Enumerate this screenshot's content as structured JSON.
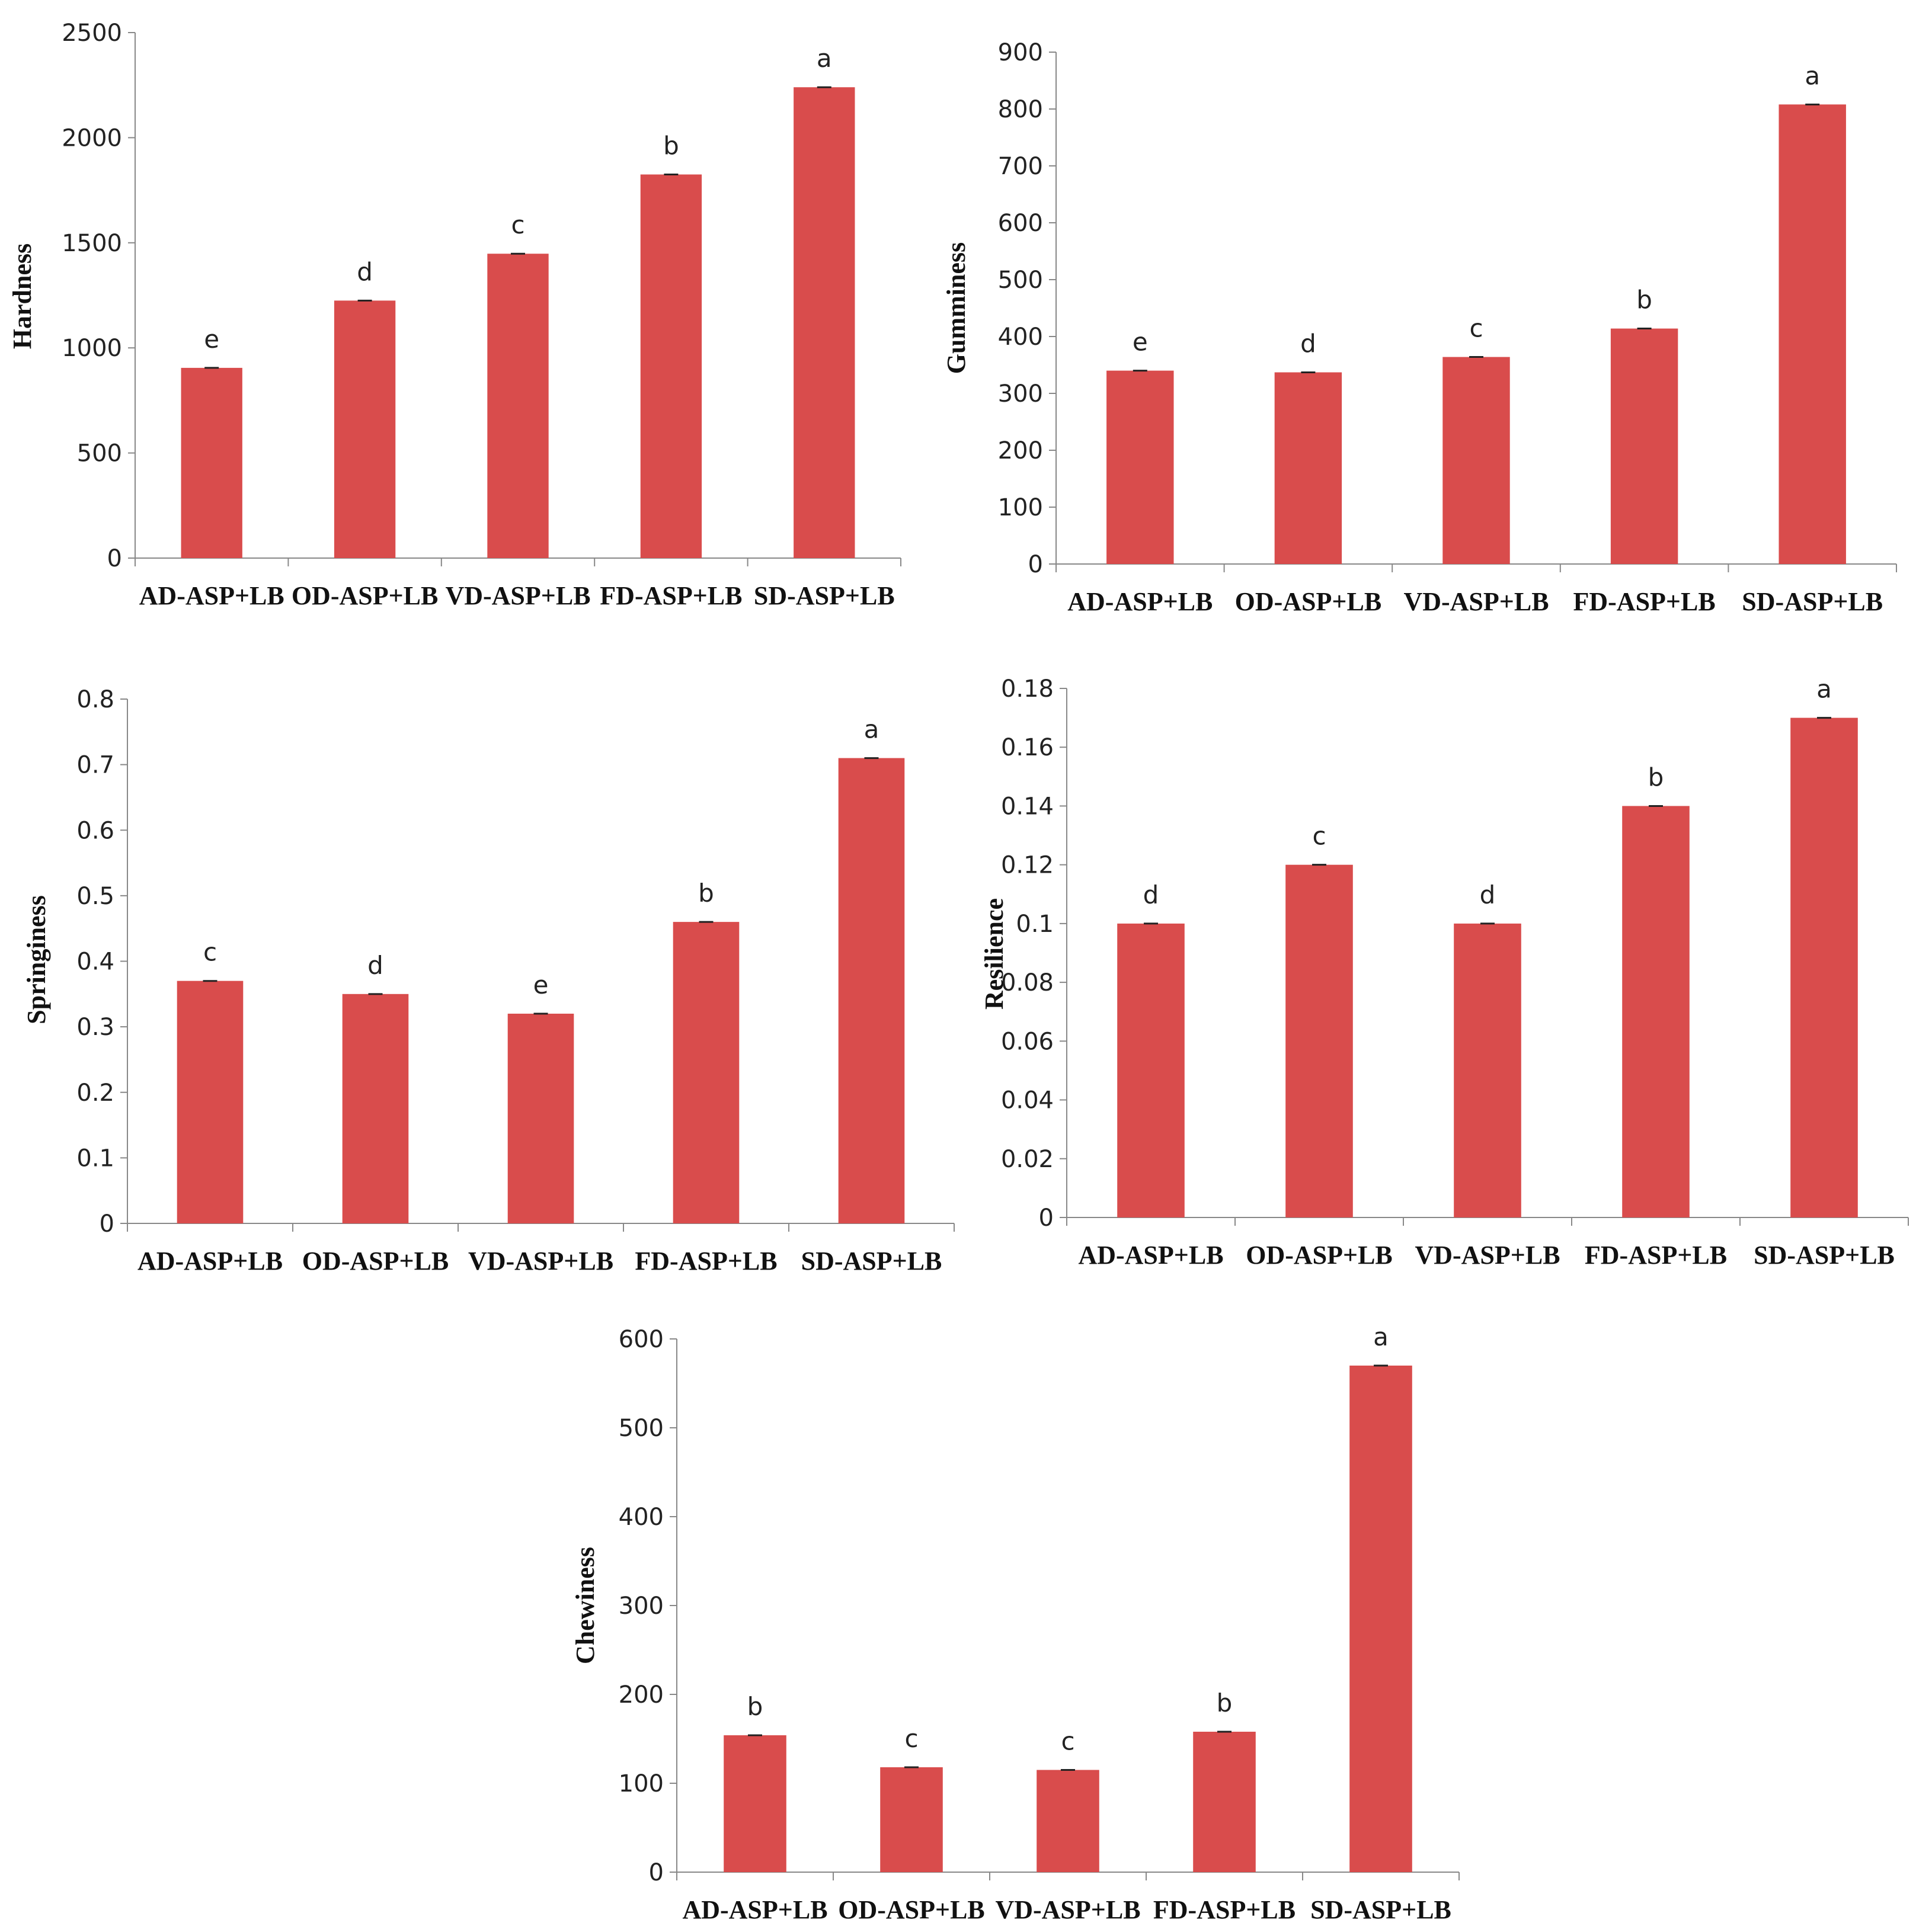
{
  "chart_data": [
    {
      "type": "bar",
      "ylabel": "Hardness",
      "categories": [
        "AD-ASP+LB",
        "OD-ASP+LB",
        "VD-ASP+LB",
        "FD-ASP+LB",
        "SD-ASP+LB"
      ],
      "values": [
        905,
        1225,
        1448,
        1825,
        2240
      ],
      "significance": [
        "e",
        "d",
        "c",
        "b",
        "a"
      ],
      "ylim": [
        0,
        2500
      ],
      "yticks": [
        0,
        500,
        1000,
        1500,
        2000,
        2500
      ],
      "tick_labels": [
        "0",
        "500",
        "1000",
        "1500",
        "2000",
        "2500"
      ],
      "bar_color": "#d94c4c"
    },
    {
      "type": "bar",
      "ylabel": "Gumminess",
      "categories": [
        "AD-ASP+LB",
        "OD-ASP+LB",
        "VD-ASP+LB",
        "FD-ASP+LB",
        "SD-ASP+LB"
      ],
      "values": [
        340,
        337,
        364,
        414,
        808
      ],
      "significance": [
        "e",
        "d",
        "c",
        "b",
        "a"
      ],
      "ylim": [
        0,
        900
      ],
      "yticks": [
        0,
        100,
        200,
        300,
        400,
        500,
        600,
        700,
        800,
        900
      ],
      "tick_labels": [
        "0",
        "100",
        "200",
        "300",
        "400",
        "500",
        "600",
        "700",
        "800",
        "900"
      ],
      "bar_color": "#d94c4c"
    },
    {
      "type": "bar",
      "ylabel": "Springiness",
      "categories": [
        "AD-ASP+LB",
        "OD-ASP+LB",
        "VD-ASP+LB",
        "FD-ASP+LB",
        "SD-ASP+LB"
      ],
      "values": [
        0.37,
        0.35,
        0.32,
        0.46,
        0.71
      ],
      "significance": [
        "c",
        "d",
        "e",
        "b",
        "a"
      ],
      "ylim": [
        0,
        0.8
      ],
      "yticks": [
        0,
        0.1,
        0.2,
        0.3,
        0.4,
        0.5,
        0.6,
        0.7,
        0.8
      ],
      "tick_labels": [
        "0",
        "0.1",
        "0.2",
        "0.3",
        "0.4",
        "0.5",
        "0.6",
        "0.7",
        "0.8"
      ],
      "bar_color": "#d94c4c"
    },
    {
      "type": "bar",
      "ylabel": "Resilience",
      "categories": [
        "AD-ASP+LB",
        "OD-ASP+LB",
        "VD-ASP+LB",
        "FD-ASP+LB",
        "SD-ASP+LB"
      ],
      "values": [
        0.1,
        0.12,
        0.1,
        0.14,
        0.17
      ],
      "significance": [
        "d",
        "c",
        "d",
        "b",
        "a"
      ],
      "ylim": [
        0,
        0.18
      ],
      "yticks": [
        0,
        0.02,
        0.04,
        0.06,
        0.08,
        0.1,
        0.12,
        0.14,
        0.16,
        0.18
      ],
      "tick_labels": [
        "0",
        "0.02",
        "0.04",
        "0.06",
        "0.08",
        "0.1",
        "0.12",
        "0.14",
        "0.16",
        "0.18"
      ],
      "bar_color": "#d94c4c"
    },
    {
      "type": "bar",
      "ylabel": "Chewiness",
      "categories": [
        "AD-ASP+LB",
        "OD-ASP+LB",
        "VD-ASP+LB",
        "FD-ASP+LB",
        "SD-ASP+LB"
      ],
      "values": [
        154,
        118,
        115,
        158,
        570
      ],
      "significance": [
        "b",
        "c",
        "c",
        "b",
        "a"
      ],
      "ylim": [
        0,
        600
      ],
      "yticks": [
        0,
        100,
        200,
        300,
        400,
        500,
        600
      ],
      "tick_labels": [
        "0",
        "100",
        "200",
        "300",
        "400",
        "500",
        "600"
      ],
      "bar_color": "#d94c4c"
    }
  ]
}
